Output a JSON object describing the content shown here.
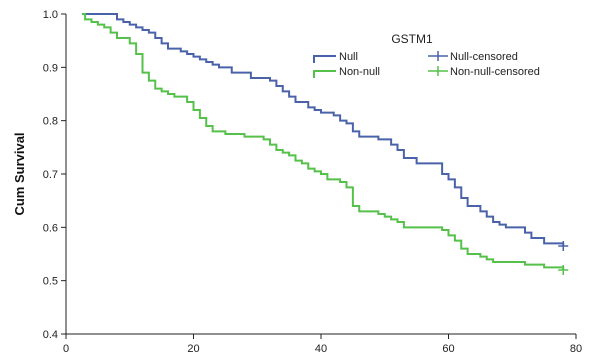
{
  "chart_data": {
    "type": "line",
    "subtype": "kaplan-meier",
    "title": "",
    "xlabel": "",
    "ylabel": "Cum Survival",
    "xlim": [
      0,
      80
    ],
    "ylim": [
      0.4,
      1.0
    ],
    "x_ticks": [
      0,
      20,
      40,
      60,
      80
    ],
    "y_ticks": [
      0.4,
      0.5,
      0.6,
      0.7,
      0.8,
      0.9,
      1.0
    ],
    "grid": false,
    "legend": {
      "title": "GSTM1",
      "placement": "top-right",
      "entries": [
        {
          "label": "Null",
          "kind": "line",
          "series": 0
        },
        {
          "label": "Null-censored",
          "kind": "censor",
          "series": 0
        },
        {
          "label": "Non-null",
          "kind": "line",
          "series": 1
        },
        {
          "label": "Non-null-censored",
          "kind": "censor",
          "series": 1
        }
      ]
    },
    "series": [
      {
        "name": "Null",
        "color": "#4a63a8",
        "steps": [
          [
            2.5,
            1.0
          ],
          [
            8,
            0.99
          ],
          [
            9,
            0.985
          ],
          [
            10,
            0.98
          ],
          [
            11,
            0.975
          ],
          [
            12,
            0.97
          ],
          [
            13,
            0.965
          ],
          [
            14,
            0.955
          ],
          [
            15,
            0.945
          ],
          [
            16,
            0.935
          ],
          [
            18,
            0.93
          ],
          [
            19,
            0.925
          ],
          [
            20,
            0.92
          ],
          [
            21,
            0.915
          ],
          [
            22,
            0.91
          ],
          [
            23,
            0.905
          ],
          [
            24,
            0.9
          ],
          [
            26,
            0.89
          ],
          [
            29,
            0.88
          ],
          [
            32,
            0.875
          ],
          [
            33,
            0.865
          ],
          [
            34,
            0.855
          ],
          [
            35,
            0.845
          ],
          [
            36,
            0.835
          ],
          [
            38,
            0.825
          ],
          [
            39,
            0.82
          ],
          [
            40,
            0.815
          ],
          [
            42,
            0.81
          ],
          [
            43,
            0.8
          ],
          [
            44,
            0.795
          ],
          [
            45,
            0.78
          ],
          [
            46,
            0.77
          ],
          [
            49,
            0.765
          ],
          [
            51,
            0.755
          ],
          [
            52,
            0.745
          ],
          [
            53,
            0.73
          ],
          [
            55,
            0.72
          ],
          [
            59,
            0.7
          ],
          [
            60,
            0.69
          ],
          [
            61,
            0.675
          ],
          [
            62,
            0.655
          ],
          [
            63,
            0.64
          ],
          [
            65,
            0.63
          ],
          [
            66,
            0.62
          ],
          [
            67,
            0.61
          ],
          [
            68,
            0.605
          ],
          [
            69,
            0.6
          ],
          [
            72,
            0.59
          ],
          [
            73,
            0.58
          ],
          [
            75,
            0.57
          ],
          [
            78,
            0.565
          ]
        ],
        "censored": [
          [
            78,
            0.565
          ]
        ]
      },
      {
        "name": "Non-null",
        "color": "#55c14a",
        "steps": [
          [
            2.5,
            1.0
          ],
          [
            3,
            0.99
          ],
          [
            4,
            0.985
          ],
          [
            5,
            0.98
          ],
          [
            6,
            0.975
          ],
          [
            7,
            0.965
          ],
          [
            8,
            0.955
          ],
          [
            10,
            0.945
          ],
          [
            11,
            0.925
          ],
          [
            12,
            0.89
          ],
          [
            13,
            0.875
          ],
          [
            14,
            0.86
          ],
          [
            15,
            0.855
          ],
          [
            16,
            0.85
          ],
          [
            17,
            0.845
          ],
          [
            19,
            0.835
          ],
          [
            20,
            0.82
          ],
          [
            21,
            0.805
          ],
          [
            22,
            0.79
          ],
          [
            23,
            0.78
          ],
          [
            25,
            0.775
          ],
          [
            28,
            0.77
          ],
          [
            31,
            0.765
          ],
          [
            32,
            0.755
          ],
          [
            33,
            0.745
          ],
          [
            34,
            0.74
          ],
          [
            35,
            0.735
          ],
          [
            36,
            0.725
          ],
          [
            37,
            0.72
          ],
          [
            38,
            0.71
          ],
          [
            39,
            0.705
          ],
          [
            40,
            0.7
          ],
          [
            41,
            0.69
          ],
          [
            43,
            0.685
          ],
          [
            44,
            0.675
          ],
          [
            45,
            0.64
          ],
          [
            46,
            0.63
          ],
          [
            49,
            0.625
          ],
          [
            50,
            0.62
          ],
          [
            51,
            0.615
          ],
          [
            52,
            0.61
          ],
          [
            53,
            0.6
          ],
          [
            59,
            0.595
          ],
          [
            60,
            0.585
          ],
          [
            61,
            0.575
          ],
          [
            62,
            0.56
          ],
          [
            63,
            0.55
          ],
          [
            65,
            0.545
          ],
          [
            66,
            0.54
          ],
          [
            67,
            0.535
          ],
          [
            72,
            0.53
          ],
          [
            75,
            0.525
          ],
          [
            78,
            0.52
          ]
        ],
        "censored": [
          [
            78,
            0.52
          ]
        ]
      }
    ]
  }
}
